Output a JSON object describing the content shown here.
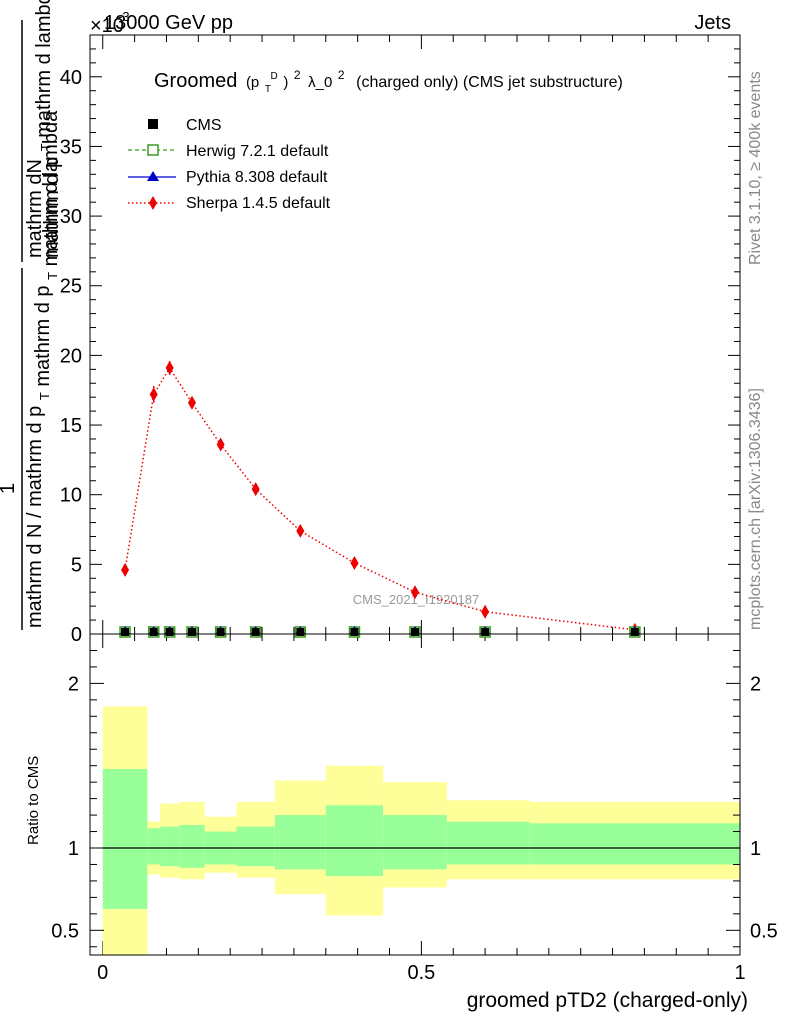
{
  "header": {
    "energy_label": "13000 GeV pp",
    "process_label": "Jets",
    "exponent_label": "×10",
    "exponent_power": "-3"
  },
  "side_labels": {
    "rivet": "Rivet 3.1.10, ≥ 400k events",
    "mcplots": "mcplots.cern.ch [arXiv:1306.3436]"
  },
  "watermark": "CMS_2021_I1920187",
  "colors": {
    "cms": "#000000",
    "herwig": "#3a9a1e",
    "pythia": "#0000cc",
    "sherpa": "#ee0000",
    "band_inner": "#99ff99",
    "band_outer": "#ffff99"
  },
  "chart_data": [
    {
      "type": "line",
      "title": "Groomed (p_T^D)^2 λ_0^2 (charged only) (CMS jet substructure)",
      "title_parts": {
        "prefix": "Groomed",
        "p": "(p",
        "sub": "T",
        "sup_d": "D",
        "close_pow": ")",
        "pow": "2",
        "lambda": "λ_0",
        "suffix": "(charged only) (CMS jet substructure)"
      },
      "ylabel": "1 / (mathrm d N / mathrm d p_T mathrm d p_T mathrm d lambda) · mathrm d²N / (mathrm d p_T mathrm d lambda)",
      "ylabel_parts": {
        "numerator": "mathrm dN",
        "denominator_top": "mathrm d p",
        "denominator_top2": "mathrm d lambda",
        "numerator2": "1",
        "denominator2": "mathrm d N / mathrm d p",
        "denominator2b": "mathrm d p",
        "denominator2c": "mathrm d lambda",
        "sub": "T"
      },
      "ylim": [
        0,
        43
      ],
      "yticks": [
        0,
        5,
        10,
        15,
        20,
        25,
        30,
        35,
        40
      ],
      "xlim": [
        -0.02,
        1.0
      ],
      "legend": [
        {
          "name": "CMS",
          "marker": "square-filled"
        },
        {
          "name": "Herwig 7.2.1 default",
          "marker": "square-open",
          "line": "dashed"
        },
        {
          "name": "Pythia 8.308 default",
          "marker": "triangle",
          "line": "solid"
        },
        {
          "name": "Sherpa 1.4.5 default",
          "marker": "diamond",
          "line": "dotted"
        }
      ],
      "series": [
        {
          "name": "CMS",
          "x": [
            0.035,
            0.08,
            0.105,
            0.14,
            0.185,
            0.24,
            0.31,
            0.395,
            0.49,
            0.6,
            0.835
          ],
          "y": [
            0,
            0,
            0,
            0,
            0,
            0,
            0,
            0,
            0,
            0,
            0
          ]
        },
        {
          "name": "Herwig 7.2.1 default",
          "x": [
            0.035,
            0.08,
            0.105,
            0.14,
            0.185,
            0.24,
            0.31,
            0.395,
            0.49,
            0.6,
            0.835
          ],
          "y": [
            0,
            0,
            0,
            0,
            0,
            0,
            0,
            0,
            0,
            0,
            0
          ]
        },
        {
          "name": "Pythia 8.308 default",
          "x": [
            0.035,
            0.08,
            0.105,
            0.14,
            0.185,
            0.24,
            0.31,
            0.395,
            0.49,
            0.6,
            0.835
          ],
          "y": [
            0,
            0,
            0,
            0,
            0,
            0,
            0,
            0,
            0,
            0,
            0
          ]
        },
        {
          "name": "Sherpa 1.4.5 default",
          "x": [
            0.035,
            0.08,
            0.105,
            0.14,
            0.185,
            0.24,
            0.31,
            0.395,
            0.49,
            0.6,
            0.835
          ],
          "y": [
            4.6,
            17.2,
            19.1,
            16.6,
            13.6,
            10.4,
            7.4,
            5.1,
            3.0,
            1.6,
            0.3
          ],
          "yerr": [
            0.3,
            0.6,
            0.5,
            0.4,
            0.3,
            0.3,
            0.2,
            0.2,
            0.2,
            0.1,
            0.1
          ]
        }
      ]
    },
    {
      "type": "area",
      "ylabel": "Ratio to CMS",
      "xlabel": "groomed pTD2 (charged-only)",
      "ylim": [
        0.35,
        2.3
      ],
      "yticks": [
        0.5,
        1,
        2
      ],
      "ytick_labels": [
        "0.5",
        "1",
        "2"
      ],
      "xlim": [
        -0.02,
        1.0
      ],
      "xticks": [
        0,
        0.5,
        1
      ],
      "xtick_labels": [
        "0",
        "0.5",
        "1"
      ],
      "reference": 1,
      "bins": [
        {
          "lo": 0.0,
          "hi": 0.07,
          "inner": [
            0.63,
            1.48
          ],
          "outer": [
            0.3,
            1.86
          ]
        },
        {
          "lo": 0.07,
          "hi": 0.09,
          "inner": [
            0.9,
            1.12
          ],
          "outer": [
            0.84,
            1.16
          ]
        },
        {
          "lo": 0.09,
          "hi": 0.12,
          "inner": [
            0.89,
            1.13
          ],
          "outer": [
            0.82,
            1.27
          ]
        },
        {
          "lo": 0.12,
          "hi": 0.16,
          "inner": [
            0.88,
            1.14
          ],
          "outer": [
            0.81,
            1.28
          ]
        },
        {
          "lo": 0.16,
          "hi": 0.21,
          "inner": [
            0.9,
            1.1
          ],
          "outer": [
            0.85,
            1.19
          ]
        },
        {
          "lo": 0.21,
          "hi": 0.27,
          "inner": [
            0.89,
            1.13
          ],
          "outer": [
            0.82,
            1.28
          ]
        },
        {
          "lo": 0.27,
          "hi": 0.35,
          "inner": [
            0.87,
            1.2
          ],
          "outer": [
            0.72,
            1.41
          ]
        },
        {
          "lo": 0.35,
          "hi": 0.44,
          "inner": [
            0.83,
            1.26
          ],
          "outer": [
            0.59,
            1.5
          ]
        },
        {
          "lo": 0.44,
          "hi": 0.54,
          "inner": [
            0.87,
            1.2
          ],
          "outer": [
            0.76,
            1.4
          ]
        },
        {
          "lo": 0.54,
          "hi": 0.67,
          "inner": [
            0.9,
            1.16
          ],
          "outer": [
            0.81,
            1.29
          ]
        },
        {
          "lo": 0.67,
          "hi": 1.0,
          "inner": [
            0.9,
            1.15
          ],
          "outer": [
            0.81,
            1.28
          ]
        }
      ]
    }
  ]
}
